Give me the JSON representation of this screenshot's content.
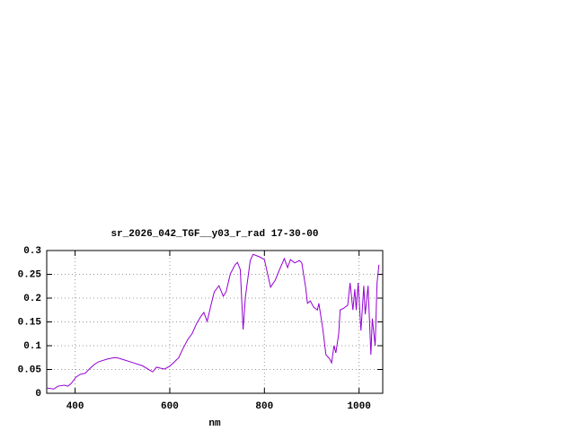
{
  "chart_data": {
    "type": "line",
    "title": "sr_2026_042_TGF__y03_r_rad 17-30-00",
    "x_label": "nm",
    "x": [
      340,
      355,
      364,
      377,
      385,
      392,
      402,
      411,
      421,
      430,
      440,
      449,
      468,
      483,
      491,
      504,
      523,
      542,
      557,
      564,
      572,
      579,
      589,
      600,
      610,
      619,
      628,
      638,
      647,
      657,
      666,
      672,
      679,
      687,
      694,
      704,
      713,
      719,
      728,
      738,
      743,
      749,
      755,
      760,
      770,
      776,
      789,
      800,
      813,
      823,
      832,
      842,
      849,
      855,
      864,
      874,
      879,
      887,
      891,
      897,
      904,
      912,
      915,
      923,
      930,
      938,
      942,
      947,
      951,
      957,
      960,
      968,
      976,
      981,
      987,
      991,
      994,
      998,
      1004,
      1010,
      1013,
      1019,
      1025,
      1028,
      1034,
      1038,
      1042
    ],
    "series": [
      {
        "color": "#9400d3",
        "values": [
          0.011,
          0.009,
          0.015,
          0.017,
          0.015,
          0.021,
          0.034,
          0.04,
          0.042,
          0.051,
          0.06,
          0.066,
          0.072,
          0.075,
          0.074,
          0.07,
          0.064,
          0.058,
          0.049,
          0.045,
          0.055,
          0.053,
          0.051,
          0.057,
          0.066,
          0.075,
          0.094,
          0.113,
          0.125,
          0.147,
          0.162,
          0.17,
          0.151,
          0.185,
          0.213,
          0.226,
          0.204,
          0.213,
          0.251,
          0.27,
          0.275,
          0.26,
          0.134,
          0.204,
          0.279,
          0.292,
          0.287,
          0.281,
          0.223,
          0.238,
          0.26,
          0.283,
          0.264,
          0.281,
          0.274,
          0.279,
          0.274,
          0.223,
          0.189,
          0.194,
          0.181,
          0.175,
          0.189,
          0.138,
          0.081,
          0.072,
          0.064,
          0.1,
          0.085,
          0.125,
          0.175,
          0.179,
          0.185,
          0.232,
          0.175,
          0.219,
          0.175,
          0.232,
          0.132,
          0.226,
          0.166,
          0.226,
          0.081,
          0.157,
          0.1,
          0.232,
          0.27
        ]
      }
    ],
    "xlim": [
      340,
      1050
    ],
    "xticks": [
      400,
      600,
      800,
      1000
    ],
    "ylim": [
      0,
      0.3
    ],
    "yticks": [
      0,
      0.05,
      0.1,
      0.15,
      0.2,
      0.25,
      0.3
    ],
    "grid": true
  }
}
